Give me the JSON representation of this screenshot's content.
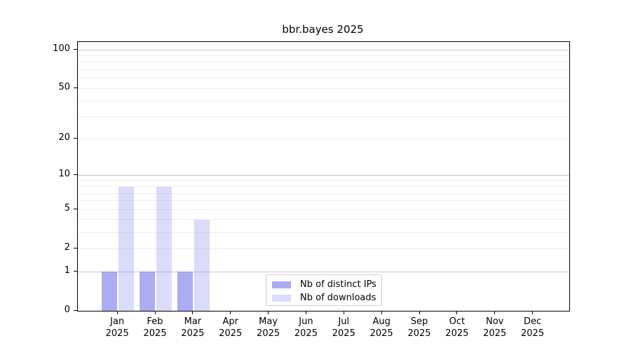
{
  "page": {
    "background": "#ffffff"
  },
  "chart_data": {
    "type": "bar",
    "title": "bbr.bayes 2025",
    "categories": [
      "Jan",
      "Feb",
      "Mar",
      "Apr",
      "May",
      "Jun",
      "Jul",
      "Aug",
      "Sep",
      "Oct",
      "Nov",
      "Dec"
    ],
    "x_year_label": "2025",
    "series": [
      {
        "name": "Nb of distinct IPs",
        "color": "rgba(85,85,230,0.49)",
        "values": [
          1,
          1,
          1,
          0,
          0,
          0,
          0,
          0,
          0,
          0,
          0,
          0
        ]
      },
      {
        "name": "Nb of downloads",
        "color": "rgba(85,85,230,0.21)",
        "values": [
          8,
          8,
          4,
          0,
          0,
          0,
          0,
          0,
          0,
          0,
          0,
          0
        ]
      }
    ],
    "xlabel": "",
    "ylabel": "",
    "y_scale": "log10(value+1)",
    "ylim": [
      0,
      115
    ],
    "y_ticks": [
      0,
      1,
      2,
      5,
      10,
      20,
      50,
      100
    ],
    "y_major_gridlines": [
      1,
      10,
      100
    ],
    "y_minor_gridlines": [
      2,
      3,
      4,
      5,
      6,
      7,
      8,
      9,
      20,
      30,
      40,
      50,
      60,
      70,
      80,
      90
    ],
    "grid": true,
    "legend_position": "lower center"
  },
  "style_colors": {
    "axis": "#000000",
    "major_grid": "#c9c9c9",
    "minor_grid": "#ececec",
    "legend_border": "#cccccc",
    "text": "#000000"
  }
}
